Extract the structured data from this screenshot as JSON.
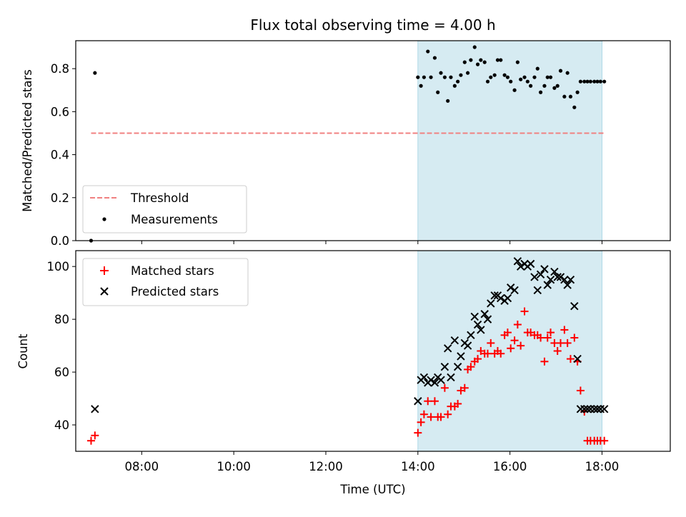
{
  "title": "Flux total observing time = 4.00 h",
  "colors": {
    "span": "#add8e6",
    "threshold": "#f08080",
    "measurement": "#000000",
    "matched": "#ff0000",
    "predicted": "#000000"
  },
  "chart_data": [
    {
      "type": "scatter",
      "panel": "top",
      "ylabel": "Matched/Predicted stars",
      "ylim": [
        0,
        0.93
      ],
      "xlim": [
        "06:34",
        "19:29"
      ],
      "yticks": [
        "0.0",
        "0.2",
        "0.4",
        "0.6",
        "0.8"
      ],
      "shaded_span": [
        "14:00",
        "18:00"
      ],
      "legend_position": "lower-left",
      "legend": [
        "Threshold",
        "Measurements"
      ],
      "threshold": {
        "name": "Threshold",
        "y": 0.5,
        "x": [
          "06:54",
          "18:03"
        ],
        "style": "dashed"
      },
      "series": [
        {
          "name": "Measurements",
          "x": [
            "06:54",
            "06:59",
            "14:00",
            "14:04",
            "14:08",
            "14:13",
            "14:17",
            "14:22",
            "14:26",
            "14:30",
            "14:35",
            "14:39",
            "14:43",
            "14:48",
            "14:52",
            "14:56",
            "15:01",
            "15:05",
            "15:09",
            "15:14",
            "15:18",
            "15:22",
            "15:27",
            "15:31",
            "15:35",
            "15:40",
            "15:44",
            "15:48",
            "15:53",
            "15:57",
            "16:01",
            "16:06",
            "16:10",
            "16:14",
            "16:19",
            "16:23",
            "16:27",
            "16:32",
            "16:36",
            "16:40",
            "16:45",
            "16:49",
            "16:53",
            "16:58",
            "17:02",
            "17:06",
            "17:11",
            "17:15",
            "17:19",
            "17:24",
            "17:28",
            "17:32",
            "17:37",
            "17:41",
            "17:45",
            "17:50",
            "17:54",
            "17:58",
            "18:03"
          ],
          "y": [
            0.0,
            0.78,
            0.76,
            0.72,
            0.76,
            0.88,
            0.76,
            0.85,
            0.69,
            0.78,
            0.76,
            0.65,
            0.76,
            0.72,
            0.74,
            0.77,
            0.83,
            0.78,
            0.84,
            0.9,
            0.82,
            0.84,
            0.83,
            0.74,
            0.76,
            0.77,
            0.84,
            0.84,
            0.77,
            0.76,
            0.74,
            0.7,
            0.83,
            0.75,
            0.76,
            0.74,
            0.72,
            0.76,
            0.8,
            0.69,
            0.72,
            0.76,
            0.76,
            0.71,
            0.72,
            0.79,
            0.67,
            0.78,
            0.67,
            0.62,
            0.69,
            0.74,
            0.74,
            0.74,
            0.74,
            0.74,
            0.74,
            0.74,
            0.74
          ]
        }
      ]
    },
    {
      "type": "scatter",
      "panel": "bottom",
      "xlabel": "Time (UTC)",
      "ylabel": "Count",
      "ylim": [
        30,
        106
      ],
      "xlim": [
        "06:34",
        "19:29"
      ],
      "xticks": [
        "08:00",
        "10:00",
        "12:00",
        "14:00",
        "16:00",
        "18:00"
      ],
      "yticks": [
        "40",
        "60",
        "80",
        "100"
      ],
      "shaded_span": [
        "14:00",
        "18:00"
      ],
      "legend_position": "upper-left",
      "legend": [
        "Matched stars",
        "Predicted stars"
      ],
      "series": [
        {
          "name": "Matched stars",
          "x": [
            "06:54",
            "06:59",
            "14:00",
            "14:04",
            "14:08",
            "14:13",
            "14:17",
            "14:22",
            "14:26",
            "14:30",
            "14:35",
            "14:39",
            "14:43",
            "14:48",
            "14:52",
            "14:56",
            "15:01",
            "15:05",
            "15:09",
            "15:14",
            "15:18",
            "15:22",
            "15:27",
            "15:31",
            "15:35",
            "15:40",
            "15:44",
            "15:48",
            "15:53",
            "15:57",
            "16:01",
            "16:06",
            "16:10",
            "16:14",
            "16:19",
            "16:23",
            "16:27",
            "16:32",
            "16:36",
            "16:40",
            "16:45",
            "16:49",
            "16:53",
            "16:58",
            "17:02",
            "17:06",
            "17:11",
            "17:15",
            "17:19",
            "17:24",
            "17:28",
            "17:32",
            "17:37",
            "17:41",
            "17:45",
            "17:50",
            "17:54",
            "17:58",
            "18:03"
          ],
          "y": [
            34,
            36,
            37,
            41,
            44,
            49,
            43,
            49,
            43,
            43,
            54,
            44,
            47,
            47,
            48,
            53,
            54,
            61,
            62,
            64,
            65,
            68,
            67,
            67,
            71,
            67,
            68,
            67,
            74,
            75,
            69,
            72,
            78,
            70,
            83,
            75,
            75,
            74,
            74,
            73,
            64,
            73,
            75,
            71,
            68,
            71,
            76,
            71,
            65,
            73,
            64,
            53,
            45,
            34,
            34,
            34,
            34,
            34,
            34
          ]
        },
        {
          "name": "Predicted stars",
          "x": [
            "06:59",
            "14:00",
            "14:04",
            "14:08",
            "14:13",
            "14:17",
            "14:22",
            "14:26",
            "14:30",
            "14:35",
            "14:39",
            "14:43",
            "14:48",
            "14:52",
            "14:56",
            "15:01",
            "15:05",
            "15:09",
            "15:14",
            "15:18",
            "15:22",
            "15:27",
            "15:31",
            "15:35",
            "15:40",
            "15:44",
            "15:48",
            "15:53",
            "15:57",
            "16:01",
            "16:06",
            "16:10",
            "16:14",
            "16:19",
            "16:23",
            "16:27",
            "16:32",
            "16:36",
            "16:40",
            "16:45",
            "16:49",
            "16:53",
            "16:58",
            "17:02",
            "17:06",
            "17:11",
            "17:15",
            "17:19",
            "17:24",
            "17:28",
            "17:32",
            "17:37",
            "17:41",
            "17:45",
            "17:50",
            "17:54",
            "17:58",
            "18:03"
          ],
          "y": [
            46,
            49,
            57,
            58,
            56,
            57,
            56,
            58,
            57,
            62,
            69,
            58,
            72,
            62,
            66,
            71,
            70,
            74,
            81,
            78,
            76,
            82,
            80,
            86,
            89,
            89,
            88,
            87,
            88,
            92,
            91,
            102,
            100,
            101,
            100,
            101,
            96,
            91,
            97,
            99,
            93,
            95,
            98,
            96,
            96,
            95,
            93,
            95,
            85,
            65,
            46,
            46,
            46,
            46,
            46,
            46,
            46,
            46
          ]
        }
      ]
    }
  ]
}
